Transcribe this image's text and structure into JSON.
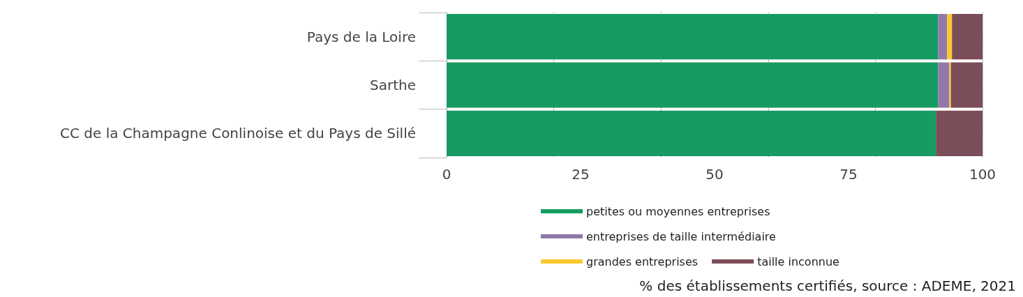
{
  "chart_data": {
    "type": "bar",
    "orientation": "horizontal",
    "stacked": true,
    "categories": [
      "Pays de la Loire",
      "Sarthe",
      "CC de la Champagne Conlinoise et du Pays de Sillé"
    ],
    "series": [
      {
        "name": "petites ou moyennes entreprises",
        "color": "#169b62",
        "values": [
          91.7,
          91.7,
          91.3
        ]
      },
      {
        "name": "entreprises de taille intermédiaire",
        "color": "#8f7aa8",
        "values": [
          1.7,
          2.1,
          0
        ]
      },
      {
        "name": "grandes entreprises",
        "color": "#fdc82f",
        "values": [
          0.9,
          0.3,
          0
        ]
      },
      {
        "name": "taille inconnue",
        "color": "#7b4d58",
        "values": [
          5.7,
          5.9,
          8.7
        ]
      }
    ],
    "xlim": [
      0,
      100
    ],
    "xticks": [
      0,
      25,
      50,
      75,
      100
    ],
    "grid": "x",
    "legend": "bottom",
    "annotations": [
      "% des établissements certifiés, source : ADEME, 2021"
    ]
  }
}
